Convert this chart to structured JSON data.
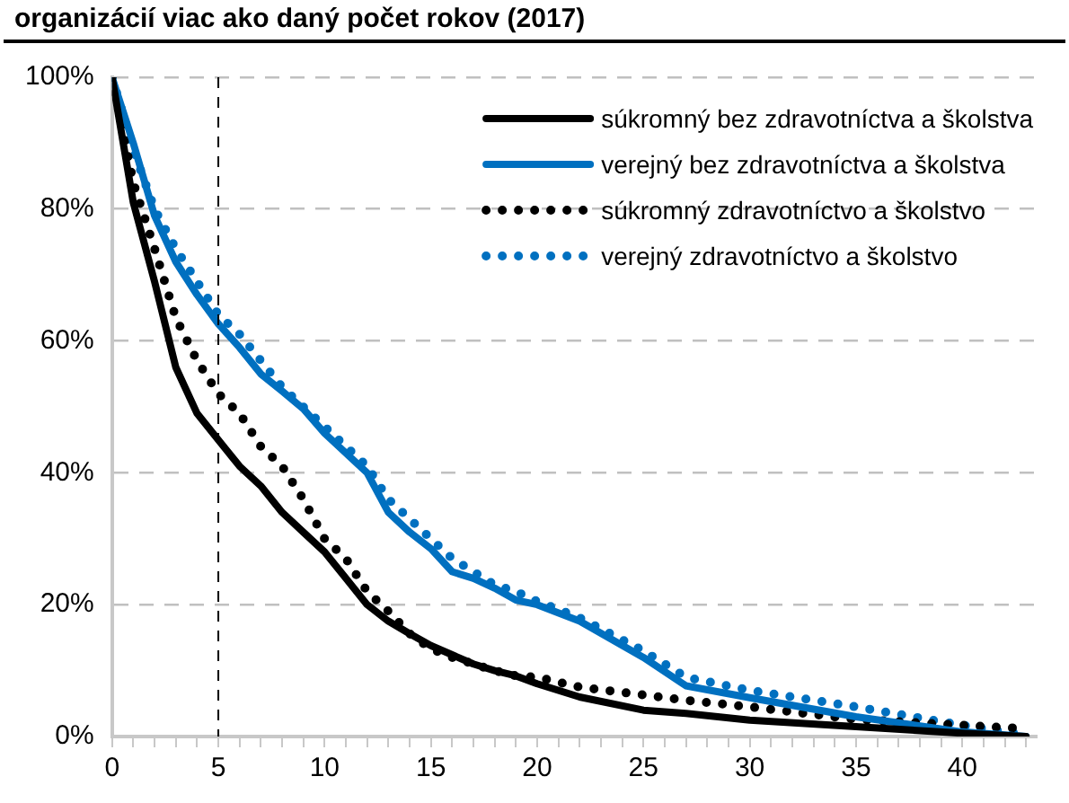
{
  "chart_data": {
    "type": "line",
    "title": "organizácií viac ako daný počet rokov (2017)",
    "legend": "top right",
    "grid": "y",
    "xlim": [
      0,
      43.5
    ],
    "ylim": [
      0,
      100
    ],
    "yticks": [
      {
        "value": 0,
        "label": "0%"
      },
      {
        "value": 20,
        "label": "20%"
      },
      {
        "value": 40,
        "label": "40%"
      },
      {
        "value": 60,
        "label": "60%"
      },
      {
        "value": 80,
        "label": "80%"
      },
      {
        "value": 100,
        "label": "100%"
      }
    ],
    "xticks": [
      0,
      {
        "value": 1,
        "label": null
      },
      {
        "value": 2,
        "label": null
      },
      {
        "value": 3,
        "label": null
      },
      {
        "value": 4,
        "label": null
      },
      5,
      {
        "value": 6,
        "label": null
      },
      {
        "value": 7,
        "label": null
      },
      {
        "value": 8,
        "label": null
      },
      {
        "value": 9,
        "label": null
      },
      10,
      {
        "value": 11,
        "label": null
      },
      {
        "value": 12,
        "label": null
      },
      {
        "value": 13,
        "label": null
      },
      {
        "value": 14,
        "label": null
      },
      15,
      {
        "value": 16,
        "label": null
      },
      {
        "value": 17,
        "label": null
      },
      {
        "value": 18,
        "label": null
      },
      {
        "value": 19,
        "label": null
      },
      20,
      {
        "value": 21,
        "label": null
      },
      {
        "value": 22,
        "label": null
      },
      {
        "value": 23,
        "label": null
      },
      {
        "value": 24,
        "label": null
      },
      25,
      {
        "value": 26,
        "label": null
      },
      {
        "value": 27,
        "label": null
      },
      {
        "value": 28,
        "label": null
      },
      {
        "value": 29,
        "label": null
      },
      30,
      {
        "value": 31,
        "label": null
      },
      {
        "value": 32,
        "label": null
      },
      {
        "value": 33,
        "label": null
      },
      {
        "value": 34,
        "label": null
      },
      35,
      {
        "value": 36,
        "label": null
      },
      {
        "value": 37,
        "label": null
      },
      {
        "value": 38,
        "label": null
      },
      {
        "value": 39,
        "label": null
      },
      40,
      {
        "value": 41,
        "label": null
      },
      {
        "value": 42,
        "label": null
      },
      {
        "value": 43,
        "label": null
      }
    ],
    "x": [
      0,
      1,
      2,
      3,
      4,
      5,
      6,
      7,
      8,
      9,
      10,
      11,
      12,
      13,
      14,
      15,
      16,
      17,
      18,
      19,
      20,
      22,
      25,
      27,
      30,
      35,
      40,
      43
    ],
    "ref_lines": [
      {
        "axis": "x",
        "value": 5,
        "color": "#000000",
        "line_style": "dashed"
      }
    ],
    "series": [
      {
        "name": "súkromný bez zdravotníctva a školstva",
        "color": "#000000",
        "line_style": "solid",
        "values": [
          100,
          81,
          69,
          56,
          49,
          45,
          41,
          38,
          34,
          31,
          28,
          24,
          20,
          17.5,
          15.6,
          13.8,
          12.4,
          11,
          10,
          9.2,
          8,
          6,
          4,
          3.5,
          2.5,
          1.5,
          0.5,
          0
        ]
      },
      {
        "name": "verejný bez zdravotníctva a školstva",
        "color": "#0070c0",
        "line_style": "solid",
        "values": [
          100,
          90,
          79,
          72,
          67,
          62.6,
          59,
          55,
          52.4,
          49.7,
          46,
          43,
          40,
          34,
          31,
          28.5,
          25,
          24,
          22.5,
          20.7,
          20,
          17.5,
          12,
          7.7,
          5.9,
          3,
          0.7,
          0
        ]
      },
      {
        "name": "súkromný zdravotníctvo a školstvo",
        "color": "#000000",
        "line_style": "dotted",
        "values": [
          100,
          84,
          74,
          63.5,
          57,
          52,
          49,
          44,
          41,
          36,
          30,
          27,
          22,
          19,
          15.6,
          13.3,
          12,
          11,
          10,
          9.2,
          9,
          7.5,
          6.3,
          5.5,
          4.5,
          2.6,
          1.7,
          1.2
        ]
      },
      {
        "name": "verejný zdravotníctvo a školstvo",
        "color": "#0070c0",
        "line_style": "dotted",
        "values": [
          100,
          89,
          80,
          74,
          69,
          64,
          61,
          57,
          53,
          50,
          47,
          44,
          41,
          36,
          33,
          30,
          27,
          25,
          23,
          22,
          20.5,
          18,
          13,
          9,
          7,
          4.5,
          1.7,
          0.3
        ]
      }
    ]
  }
}
